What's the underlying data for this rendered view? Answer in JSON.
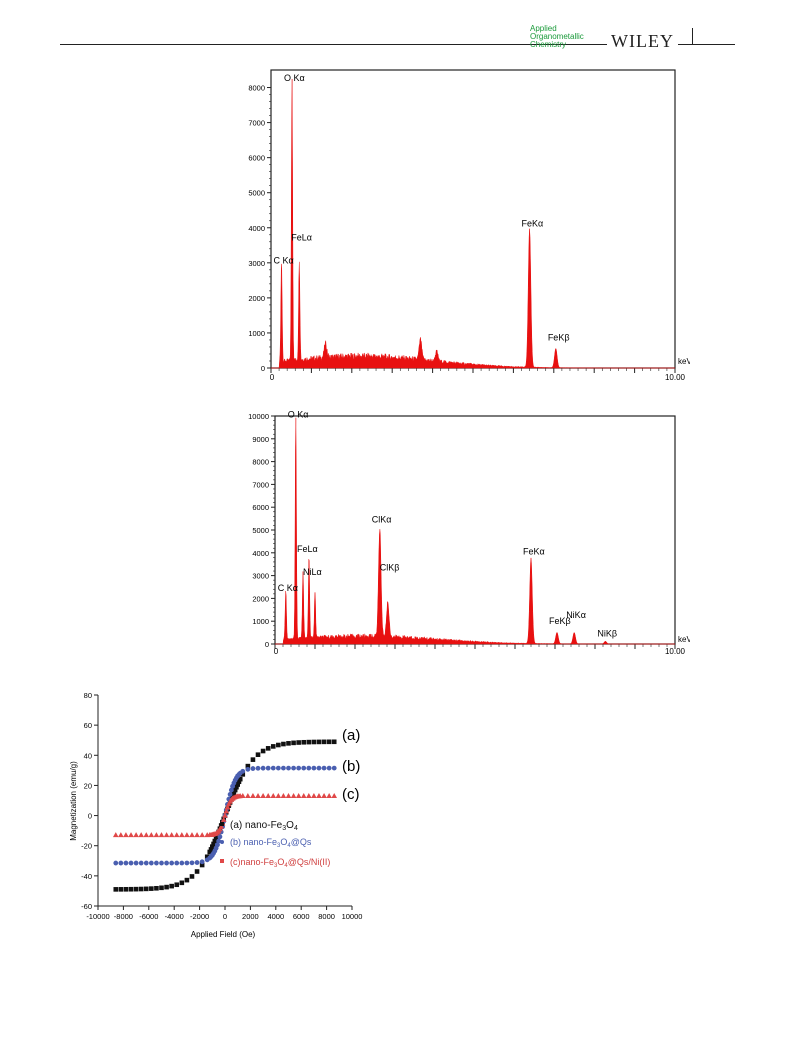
{
  "header": {
    "journal_line1": "Applied",
    "journal_line2": "Organometallic",
    "journal_line3": "Chemistry",
    "publisher": "WILEY"
  },
  "colors": {
    "eds_fill": "#e81010",
    "series_a": "#111111",
    "series_b": "#4a5fb0",
    "series_c": "#e04848"
  },
  "chart_data": [
    {
      "type": "area",
      "xlabel": "keV",
      "xlim": [
        0,
        10
      ],
      "ylim": [
        0,
        8500
      ],
      "x_ticks": [
        "0",
        "10.00"
      ],
      "y_ticks": [
        "0",
        "1000",
        "2000",
        "3000",
        "4000",
        "5000",
        "6000",
        "7000",
        "8000"
      ],
      "peaks": [
        {
          "x": 0.26,
          "y": 2900
        },
        {
          "x": 0.52,
          "y": 8100
        },
        {
          "x": 0.7,
          "y": 2850
        },
        {
          "x": 1.35,
          "y": 400
        },
        {
          "x": 3.7,
          "y": 580
        },
        {
          "x": 4.1,
          "y": 280
        },
        {
          "x": 6.4,
          "y": 3950
        },
        {
          "x": 7.05,
          "y": 550
        }
      ],
      "annotations": [
        {
          "text": "O Kα",
          "x": 0.52,
          "y": 8100
        },
        {
          "text": "FeLα",
          "x": 0.7,
          "y": 3550
        },
        {
          "text": "C Kα",
          "x": 0.26,
          "y": 2900
        },
        {
          "text": "FeKα",
          "x": 6.4,
          "y": 3950
        },
        {
          "text": "FeKβ",
          "x": 7.05,
          "y": 700
        }
      ]
    },
    {
      "type": "area",
      "xlabel": "keV",
      "xlim": [
        0,
        10
      ],
      "ylim": [
        0,
        10000
      ],
      "x_ticks": [
        "0",
        "10.00"
      ],
      "y_ticks": [
        "0",
        "1000",
        "2000",
        "3000",
        "4000",
        "5000",
        "6000",
        "7000",
        "8000",
        "9000",
        "10000"
      ],
      "peaks": [
        {
          "x": 0.27,
          "y": 2200
        },
        {
          "x": 0.52,
          "y": 9800
        },
        {
          "x": 0.7,
          "y": 3000
        },
        {
          "x": 0.85,
          "y": 3600
        },
        {
          "x": 1.0,
          "y": 2000
        },
        {
          "x": 2.62,
          "y": 4750
        },
        {
          "x": 2.82,
          "y": 1500
        },
        {
          "x": 6.4,
          "y": 3750
        },
        {
          "x": 7.05,
          "y": 500
        },
        {
          "x": 7.48,
          "y": 500
        },
        {
          "x": 8.26,
          "y": 120
        }
      ],
      "annotations": [
        {
          "text": "O Kα",
          "x": 0.52,
          "y": 9800
        },
        {
          "text": "FeLα",
          "x": 0.75,
          "y": 3900
        },
        {
          "text": "NiLα",
          "x": 0.9,
          "y": 2900
        },
        {
          "text": "C Kα",
          "x": 0.27,
          "y": 2200
        },
        {
          "text": "ClKα",
          "x": 2.62,
          "y": 5200
        },
        {
          "text": "ClKβ",
          "x": 2.82,
          "y": 3100
        },
        {
          "text": "FeKα",
          "x": 6.4,
          "y": 3800
        },
        {
          "text": "FeKβ",
          "x": 7.05,
          "y": 750
        },
        {
          "text": "NiKα",
          "x": 7.48,
          "y": 1000
        },
        {
          "text": "NiKβ",
          "x": 8.26,
          "y": 200
        }
      ]
    },
    {
      "type": "scatter",
      "xlabel": "Applied Field (Oe)",
      "ylabel": "Magnetization (emu/g)",
      "xlim": [
        -10000,
        10000
      ],
      "ylim": [
        -60,
        80
      ],
      "x_ticks": [
        "-10000",
        "-8000",
        "-6000",
        "-4000",
        "-2000",
        "0",
        "2000",
        "4000",
        "6000",
        "8000",
        "10000"
      ],
      "y_ticks": [
        "-60",
        "-40",
        "-20",
        "0",
        "20",
        "40",
        "60",
        "80"
      ],
      "series": [
        {
          "name": "(a) nano-Fe3O4",
          "label": "(a)",
          "Ms": 49,
          "k": 0.00045,
          "marker": "square"
        },
        {
          "name": "(b) nano-Fe3O4@Qs",
          "label": "(b)",
          "Ms": 31.5,
          "k": 0.0012,
          "marker": "circle"
        },
        {
          "name": "(c)nano-Fe3O4@Qs/Ni(II)",
          "label": "(c)",
          "Ms": 13,
          "k": 0.0022,
          "marker": "triangle"
        }
      ],
      "legend": {
        "a_prefix": "(a) nano-Fe",
        "a_sub1": "3",
        "a_mid": "O",
        "a_sub2": "4",
        "b_prefix": "(b) nano-Fe",
        "b_sub1": "3",
        "b_mid": "O",
        "b_sub2": "4",
        "b_suffix": "@Qs",
        "c_prefix": "(c)nano-Fe",
        "c_sub1": "3",
        "c_mid": "O",
        "c_sub2": "4",
        "c_suffix": "@Qs/Ni(II)"
      }
    }
  ]
}
